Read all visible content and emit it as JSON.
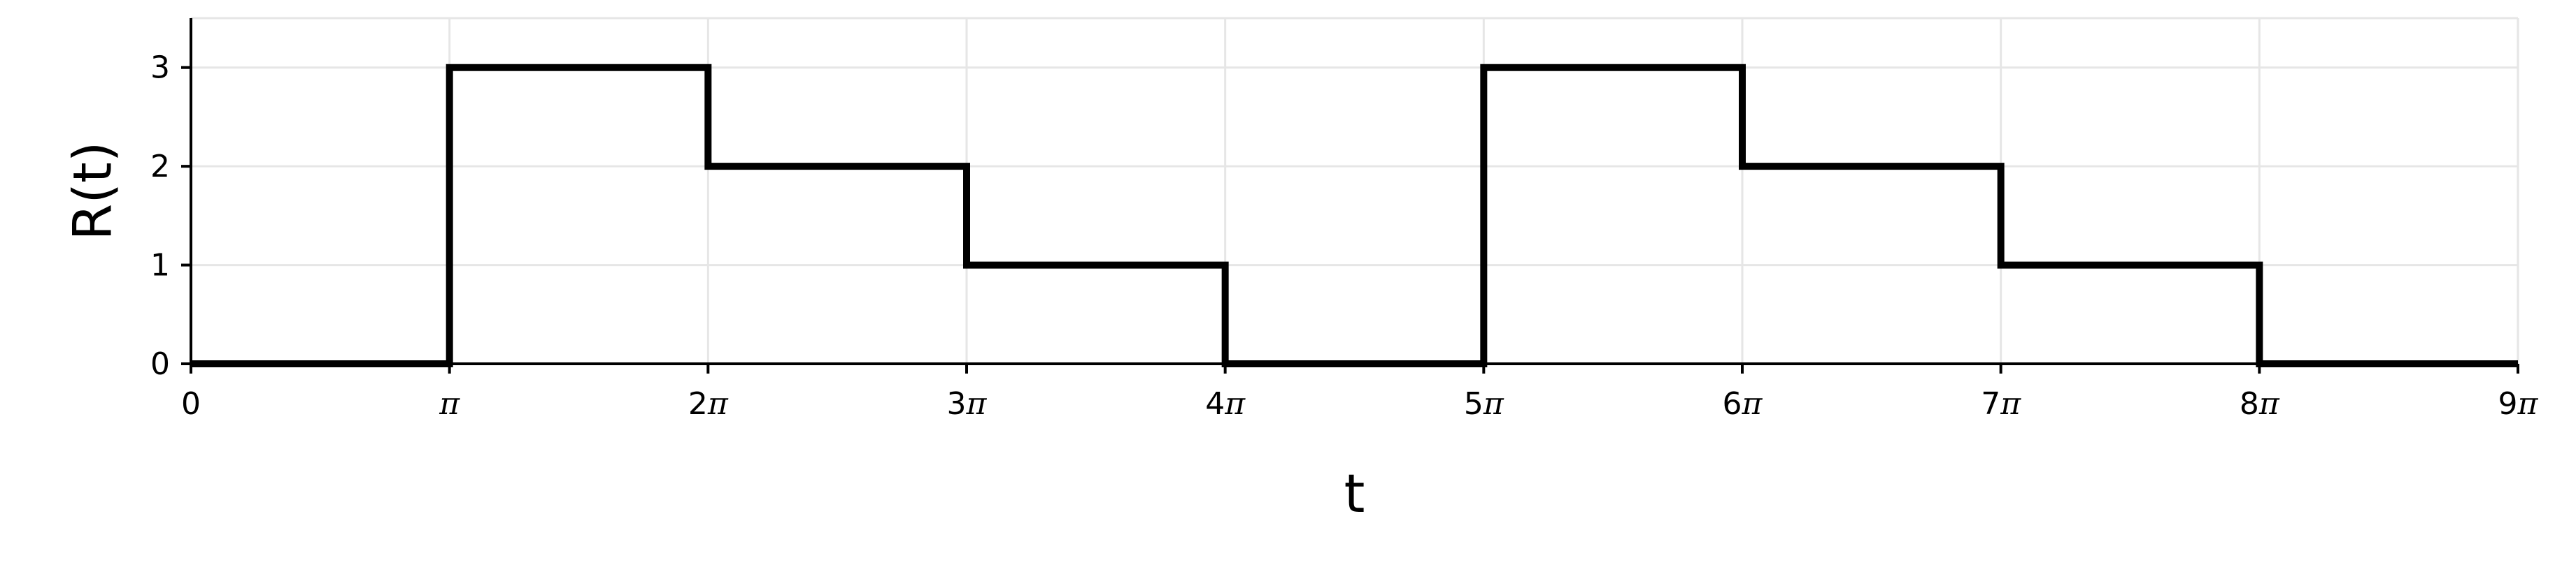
{
  "chart_data": {
    "type": "line",
    "step": "post",
    "title": "",
    "xlabel": "t",
    "ylabel": "R(t)",
    "xlim": [
      0,
      9
    ],
    "ylim": [
      0,
      3.5
    ],
    "x_unit": "π",
    "x_ticks": [
      {
        "value": 0,
        "label": "0"
      },
      {
        "value": 1,
        "label": "π"
      },
      {
        "value": 2,
        "label": "2π"
      },
      {
        "value": 3,
        "label": "3π"
      },
      {
        "value": 4,
        "label": "4π"
      },
      {
        "value": 5,
        "label": "5π"
      },
      {
        "value": 6,
        "label": "6π"
      },
      {
        "value": 7,
        "label": "7π"
      },
      {
        "value": 8,
        "label": "8π"
      },
      {
        "value": 9,
        "label": "9π"
      }
    ],
    "y_ticks": [
      {
        "value": 0,
        "label": "0"
      },
      {
        "value": 1,
        "label": "1"
      },
      {
        "value": 2,
        "label": "2"
      },
      {
        "value": 3,
        "label": "3"
      }
    ],
    "grid": true,
    "legend": "none",
    "series": [
      {
        "color": "#000000",
        "x": [
          0,
          1,
          2,
          3,
          4,
          5,
          6,
          7,
          8,
          9
        ],
        "values": [
          0,
          3,
          2,
          1,
          0,
          3,
          2,
          1,
          0,
          0
        ]
      }
    ]
  }
}
